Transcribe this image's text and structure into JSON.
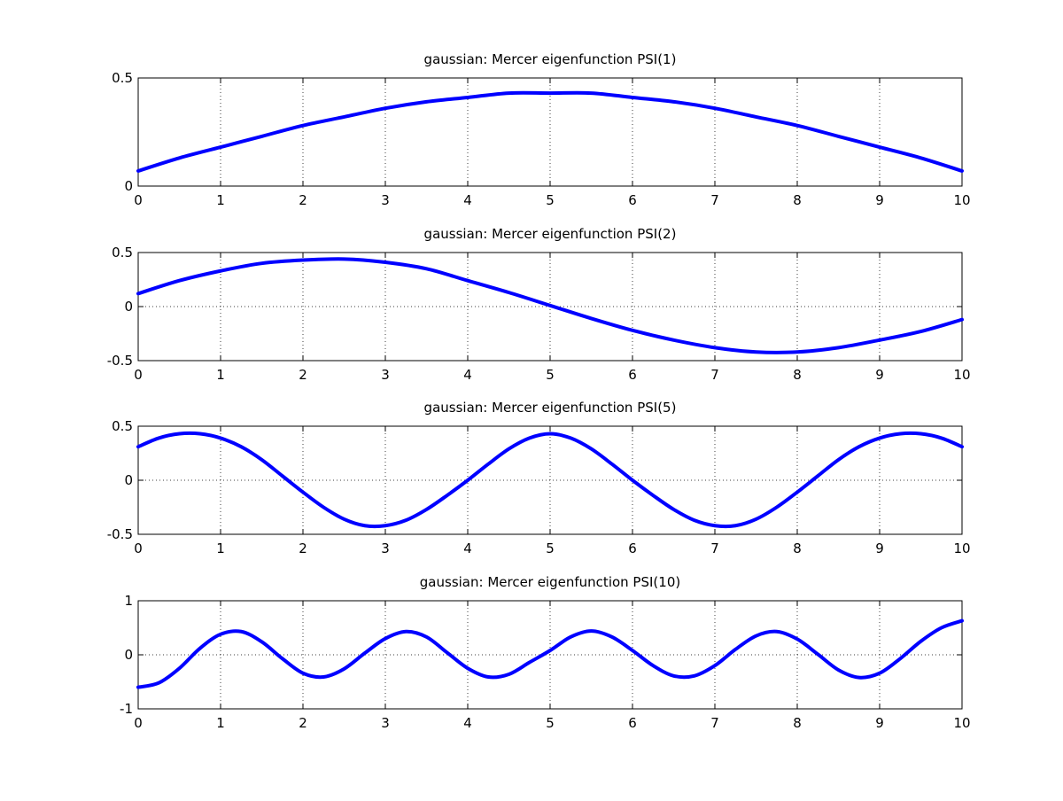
{
  "figure": {
    "background": "#ffffff"
  },
  "chart_data": [
    {
      "type": "line",
      "title": "gaussian: Mercer eigenfunction PSI(1)",
      "xlabel": "",
      "ylabel": "",
      "xlim": [
        0,
        10
      ],
      "ylim": [
        0,
        0.5
      ],
      "xticks": [
        0,
        1,
        2,
        3,
        4,
        5,
        6,
        7,
        8,
        9,
        10
      ],
      "yticks": [
        0,
        0.5
      ],
      "ytick_labels": [
        "0",
        "0.5"
      ],
      "grid": true,
      "series": [
        {
          "color": "#0000ff",
          "x": [
            0,
            0.5,
            1,
            1.5,
            2,
            2.5,
            3,
            3.5,
            4,
            4.5,
            5,
            5.5,
            6,
            6.5,
            7,
            7.5,
            8,
            8.5,
            9,
            9.5,
            10
          ],
          "y": [
            0.07,
            0.13,
            0.18,
            0.23,
            0.28,
            0.32,
            0.36,
            0.39,
            0.41,
            0.43,
            0.43,
            0.43,
            0.41,
            0.39,
            0.36,
            0.32,
            0.28,
            0.23,
            0.18,
            0.13,
            0.07
          ]
        }
      ]
    },
    {
      "type": "line",
      "title": "gaussian: Mercer eigenfunction PSI(2)",
      "xlabel": "",
      "ylabel": "",
      "xlim": [
        0,
        10
      ],
      "ylim": [
        -0.5,
        0.5
      ],
      "xticks": [
        0,
        1,
        2,
        3,
        4,
        5,
        6,
        7,
        8,
        9,
        10
      ],
      "yticks": [
        -0.5,
        0,
        0.5
      ],
      "ytick_labels": [
        "-0.5",
        "0",
        "0.5"
      ],
      "grid": true,
      "series": [
        {
          "color": "#0000ff",
          "x": [
            0,
            0.5,
            1,
            1.5,
            2,
            2.5,
            3,
            3.5,
            4,
            4.5,
            5,
            5.5,
            6,
            6.5,
            7,
            7.5,
            8,
            8.5,
            9,
            9.5,
            10
          ],
          "y": [
            0.12,
            0.24,
            0.33,
            0.4,
            0.43,
            0.44,
            0.41,
            0.35,
            0.24,
            0.13,
            0.01,
            -0.11,
            -0.22,
            -0.31,
            -0.38,
            -0.42,
            -0.42,
            -0.38,
            -0.31,
            -0.23,
            -0.12
          ]
        }
      ]
    },
    {
      "type": "line",
      "title": "gaussian: Mercer eigenfunction PSI(5)",
      "xlabel": "",
      "ylabel": "",
      "xlim": [
        0,
        10
      ],
      "ylim": [
        -0.5,
        0.5
      ],
      "xticks": [
        0,
        1,
        2,
        3,
        4,
        5,
        6,
        7,
        8,
        9,
        10
      ],
      "yticks": [
        -0.5,
        0,
        0.5
      ],
      "ytick_labels": [
        "-0.5",
        "0",
        "0.5"
      ],
      "grid": true,
      "series": [
        {
          "color": "#0000ff",
          "x": [
            0,
            0.25,
            0.5,
            0.75,
            1,
            1.25,
            1.5,
            1.75,
            2,
            2.25,
            2.5,
            2.75,
            3,
            3.25,
            3.5,
            3.75,
            4,
            4.25,
            4.5,
            4.75,
            5,
            5.25,
            5.5,
            5.75,
            6,
            6.25,
            6.5,
            6.75,
            7,
            7.25,
            7.5,
            7.75,
            8,
            8.25,
            8.5,
            8.75,
            9,
            9.25,
            9.5,
            9.75,
            10
          ],
          "y": [
            0.31,
            0.39,
            0.43,
            0.43,
            0.39,
            0.31,
            0.19,
            0.04,
            -0.11,
            -0.25,
            -0.36,
            -0.42,
            -0.42,
            -0.37,
            -0.27,
            -0.14,
            0.0,
            0.15,
            0.29,
            0.39,
            0.43,
            0.39,
            0.29,
            0.15,
            0.0,
            -0.14,
            -0.27,
            -0.37,
            -0.42,
            -0.42,
            -0.36,
            -0.25,
            -0.11,
            0.04,
            0.19,
            0.31,
            0.39,
            0.43,
            0.43,
            0.39,
            0.31
          ]
        }
      ]
    },
    {
      "type": "line",
      "title": "gaussian: Mercer eigenfunction PSI(10)",
      "xlabel": "",
      "ylabel": "",
      "xlim": [
        0,
        10
      ],
      "ylim": [
        -1,
        1
      ],
      "xticks": [
        0,
        1,
        2,
        3,
        4,
        5,
        6,
        7,
        8,
        9,
        10
      ],
      "yticks": [
        -1,
        0,
        1
      ],
      "ytick_labels": [
        "-1",
        "0",
        "1"
      ],
      "grid": true,
      "series": [
        {
          "color": "#0000ff",
          "x": [
            0,
            0.25,
            0.5,
            0.75,
            1,
            1.25,
            1.5,
            1.75,
            2,
            2.25,
            2.5,
            2.75,
            3,
            3.25,
            3.5,
            3.75,
            4,
            4.25,
            4.5,
            4.75,
            5,
            5.25,
            5.5,
            5.75,
            6,
            6.25,
            6.5,
            6.75,
            7,
            7.25,
            7.5,
            7.75,
            8,
            8.25,
            8.5,
            8.75,
            9,
            9.25,
            9.5,
            9.75,
            10
          ],
          "y": [
            -0.6,
            -0.52,
            -0.25,
            0.12,
            0.38,
            0.43,
            0.24,
            -0.07,
            -0.34,
            -0.41,
            -0.26,
            0.03,
            0.3,
            0.43,
            0.33,
            0.04,
            -0.25,
            -0.41,
            -0.36,
            -0.14,
            0.08,
            0.33,
            0.44,
            0.33,
            0.08,
            -0.2,
            -0.39,
            -0.39,
            -0.2,
            0.1,
            0.35,
            0.43,
            0.29,
            0.01,
            -0.28,
            -0.42,
            -0.34,
            -0.07,
            0.25,
            0.5,
            0.63
          ]
        }
      ]
    }
  ]
}
